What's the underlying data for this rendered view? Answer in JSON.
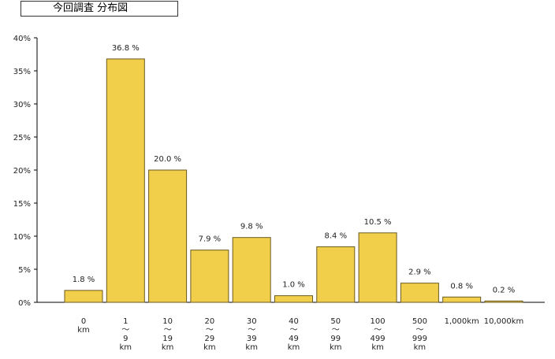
{
  "chart_data": {
    "type": "bar",
    "title": "今回調査 分布図",
    "categories": [
      [
        "0",
        "km"
      ],
      [
        "1",
        "〜",
        "9",
        "km"
      ],
      [
        "10",
        "〜",
        "19",
        "km"
      ],
      [
        "20",
        "〜",
        "29",
        "km"
      ],
      [
        "30",
        "〜",
        "39",
        "km"
      ],
      [
        "40",
        "〜",
        "49",
        "km"
      ],
      [
        "50",
        "〜",
        "99",
        "km"
      ],
      [
        "100",
        "〜",
        "499",
        "km"
      ],
      [
        "500",
        "〜",
        "999",
        "km"
      ],
      [
        "1,000km"
      ],
      [
        "10,000km"
      ]
    ],
    "values": [
      1.8,
      36.8,
      20.0,
      7.9,
      9.8,
      1.0,
      8.4,
      10.5,
      2.9,
      0.8,
      0.2
    ],
    "value_labels": [
      "1.8 %",
      "36.8 %",
      "20.0 %",
      "7.9 %",
      "9.8 %",
      "1.0 %",
      "8.4 %",
      "10.5 %",
      "2.9 %",
      "0.8 %",
      "0.2 %"
    ],
    "yticks": [
      "0%",
      "5%",
      "10%",
      "15%",
      "20%",
      "25%",
      "30%",
      "35%",
      "40%"
    ],
    "ylim": [
      0,
      40
    ],
    "grid": false,
    "legend": "none",
    "bar_color": "#f2cf4a",
    "bar_stroke": "#6b5a1e"
  }
}
